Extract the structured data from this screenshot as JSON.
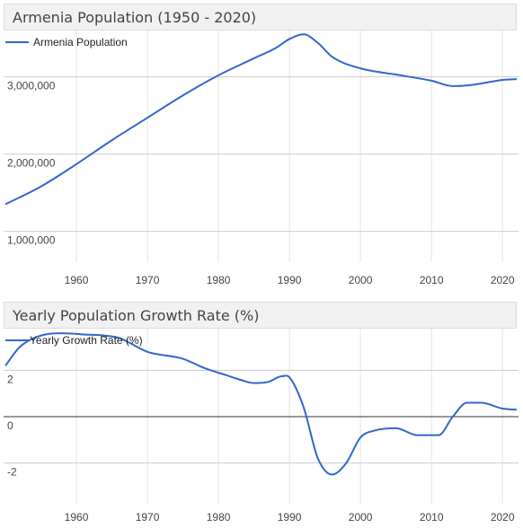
{
  "charts": {
    "population": {
      "title": "Armenia Population (1950 - 2020)",
      "legend": "Armenia Population"
    },
    "growth": {
      "title": "Yearly Population Growth Rate (%)",
      "legend": "Yearly Growth Rate (%)"
    }
  },
  "chart_data": [
    {
      "type": "line",
      "title": "Armenia Population (1950 - 2020)",
      "xlabel": "",
      "ylabel": "",
      "legend_position": "top-left",
      "grid": true,
      "line_color": "#3366cc",
      "xlim": [
        1950,
        2022
      ],
      "x_ticks": [
        1960,
        1970,
        1980,
        1990,
        2000,
        2010,
        2020
      ],
      "y_ticks": [
        1000000,
        2000000,
        3000000
      ],
      "y_tick_labels": [
        "1,000,000",
        "2,000,000",
        "3,000,000"
      ],
      "ylim": [
        600000,
        3600000
      ],
      "series": [
        {
          "name": "Armenia Population",
          "x": [
            1950,
            1955,
            1960,
            1965,
            1970,
            1975,
            1980,
            1985,
            1988,
            1990,
            1992,
            1994,
            1996,
            2000,
            2005,
            2010,
            2013,
            2016,
            2020,
            2022
          ],
          "y": [
            1350000,
            1580000,
            1870000,
            2180000,
            2470000,
            2760000,
            3020000,
            3240000,
            3370000,
            3490000,
            3550000,
            3440000,
            3260000,
            3110000,
            3030000,
            2950000,
            2880000,
            2900000,
            2960000,
            2970000
          ]
        }
      ]
    },
    {
      "type": "line",
      "title": "Yearly Population Growth Rate (%)",
      "xlabel": "",
      "ylabel": "",
      "legend_position": "top-left",
      "grid": true,
      "line_color": "#3366cc",
      "xlim": [
        1950,
        2022
      ],
      "x_ticks": [
        1960,
        1970,
        1980,
        1990,
        2000,
        2010,
        2020
      ],
      "y_ticks": [
        -2,
        0,
        2
      ],
      "y_tick_labels": [
        "-2",
        "0",
        "2"
      ],
      "ylim": [
        -3.8,
        3.8
      ],
      "series": [
        {
          "name": "Yearly Growth Rate (%)",
          "x": [
            1950,
            1952,
            1955,
            1958,
            1961,
            1964,
            1966,
            1970,
            1975,
            1978,
            1981,
            1983,
            1985,
            1987,
            1989,
            1990,
            1992,
            1994,
            1996,
            1998,
            2000,
            2002,
            2005,
            2008,
            2011,
            2013,
            2015,
            2017,
            2020,
            2022
          ],
          "y": [
            2.2,
            3.0,
            3.5,
            3.6,
            3.55,
            3.5,
            3.4,
            2.8,
            2.5,
            2.1,
            1.8,
            1.6,
            1.45,
            1.5,
            1.75,
            1.7,
            0.4,
            -1.8,
            -2.5,
            -2.0,
            -0.9,
            -0.6,
            -0.5,
            -0.8,
            -0.8,
            0.0,
            0.6,
            0.6,
            0.35,
            0.3
          ]
        }
      ]
    }
  ]
}
